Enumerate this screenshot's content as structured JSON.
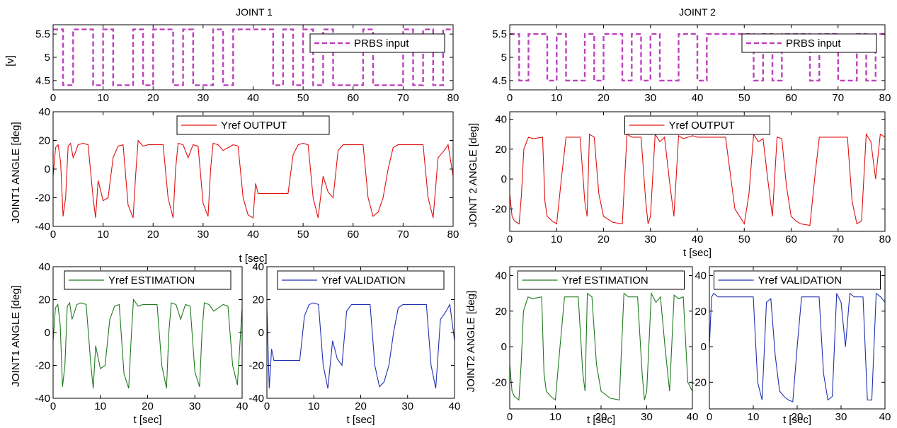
{
  "figure": {
    "title_left": "JOINT 1",
    "title_right": "JOINT  2"
  },
  "chart_data": [
    {
      "id": "j1-input",
      "type": "line",
      "title": "JOINT 1",
      "xlabel": "",
      "ylabel": "[v]",
      "xlim": [
        0,
        80
      ],
      "ylim": [
        4.3,
        5.7
      ],
      "xticks": [
        0,
        10,
        20,
        30,
        40,
        50,
        60,
        70,
        80
      ],
      "yticks": [
        4.5,
        5,
        5.5
      ],
      "legend": "top-right",
      "series": [
        {
          "name": "PRBS  input",
          "color": "#bf40bf",
          "dashed": true,
          "signal": "square",
          "low": 4.4,
          "high": 5.6,
          "transitions": [
            0,
            2,
            4,
            8,
            10,
            12,
            16,
            18,
            20,
            24,
            26,
            28,
            32,
            34,
            36,
            44,
            46,
            48,
            50,
            52,
            54,
            56,
            62,
            64,
            70,
            72,
            74,
            76,
            78
          ]
        }
      ]
    },
    {
      "id": "j1-output",
      "type": "line",
      "xlabel": "t  [sec]",
      "ylabel": "JOINT1  ANGLE  [deg]",
      "xlim": [
        0,
        80
      ],
      "ylim": [
        -40,
        40
      ],
      "xticks": [
        0,
        10,
        20,
        30,
        40,
        50,
        60,
        70,
        80
      ],
      "yticks": [
        -40,
        -20,
        0,
        20,
        40
      ],
      "legend": "top-center",
      "series": [
        {
          "name": "Yref  OUTPUT",
          "color": "#e01010",
          "x": [
            0,
            0.5,
            1,
            1.5,
            2,
            2.5,
            3,
            3.5,
            4,
            4.5,
            5,
            6,
            7,
            8,
            8.5,
            9,
            10,
            11,
            12,
            13,
            14,
            15,
            16,
            16.5,
            17,
            17.5,
            18,
            19,
            20,
            21,
            22,
            23,
            24,
            24.5,
            25,
            26,
            27,
            28,
            29,
            30,
            31,
            31.5,
            32,
            33,
            34,
            35,
            36,
            37,
            38,
            39,
            40,
            40.5,
            41,
            42,
            43,
            44,
            45,
            46,
            47,
            48,
            49,
            50,
            51,
            52,
            53,
            54,
            55,
            56,
            57,
            58,
            59,
            60,
            61,
            62,
            63,
            64,
            65,
            66,
            67,
            68,
            69,
            70,
            71,
            72,
            73,
            74,
            75,
            76,
            77,
            78,
            79,
            80
          ],
          "y": [
            -5,
            15,
            17,
            5,
            -33,
            -20,
            16,
            18,
            8,
            12,
            17,
            18,
            17,
            -20,
            -34,
            -8,
            -22,
            -20,
            8,
            16,
            17,
            -25,
            -34,
            -5,
            20,
            18,
            16,
            17,
            17,
            17,
            17,
            -20,
            -34,
            0,
            18,
            17,
            8,
            17,
            16,
            -24,
            -33,
            0,
            18,
            17,
            13,
            15,
            17,
            16,
            -20,
            -32,
            -34,
            -10,
            -17,
            -17,
            -17,
            -17,
            -17,
            -17,
            -17,
            10,
            17,
            18,
            17,
            -20,
            -34,
            -5,
            -16,
            -20,
            13,
            17,
            17,
            17,
            17,
            17,
            -20,
            -33,
            -30,
            -20,
            0,
            15,
            17,
            17,
            17,
            17,
            17,
            17,
            -20,
            -34,
            8,
            12,
            17,
            -5
          ]
        }
      ]
    },
    {
      "id": "j1-estimation",
      "type": "line",
      "xlabel": "t  [sec]",
      "ylabel": "JOINT1  ANGLE  [deg]",
      "xlim": [
        0,
        40
      ],
      "ylim": [
        -40,
        40
      ],
      "xticks": [
        0,
        10,
        20,
        30,
        40
      ],
      "yticks": [
        -40,
        -20,
        0,
        20,
        40
      ],
      "legend": "top-center",
      "series": [
        {
          "name": "Yref ESTIMATION",
          "color": "#1e7a1e",
          "x": [
            0,
            0.5,
            1,
            1.5,
            2,
            2.5,
            3,
            3.5,
            4,
            4.5,
            5,
            6,
            7,
            8,
            8.5,
            9,
            10,
            11,
            12,
            13,
            14,
            15,
            16,
            16.5,
            17,
            17.5,
            18,
            19,
            20,
            21,
            22,
            23,
            24,
            24.5,
            25,
            26,
            27,
            28,
            29,
            30,
            31,
            31.5,
            32,
            33,
            34,
            35,
            36,
            37,
            38,
            39,
            40
          ],
          "y": [
            -5,
            15,
            17,
            5,
            -33,
            -20,
            16,
            18,
            8,
            12,
            17,
            18,
            17,
            -20,
            -34,
            -8,
            -22,
            -20,
            8,
            16,
            17,
            -25,
            -34,
            -5,
            20,
            18,
            16,
            17,
            17,
            17,
            17,
            -20,
            -34,
            0,
            18,
            17,
            8,
            17,
            16,
            -24,
            -33,
            0,
            18,
            17,
            13,
            15,
            17,
            16,
            -20,
            -32,
            15
          ]
        }
      ]
    },
    {
      "id": "j1-validation",
      "type": "line",
      "xlabel": "t  [sec]",
      "ylabel": "",
      "xlim": [
        0,
        40
      ],
      "ylim": [
        -40,
        40
      ],
      "xticks": [
        0,
        10,
        20,
        30,
        40
      ],
      "yticks": [
        -40,
        -20,
        0,
        20,
        40
      ],
      "legend": "top-center",
      "series": [
        {
          "name": "Yref VALIDATION",
          "color": "#2030b0",
          "x": [
            0,
            0.5,
            1,
            1.5,
            2,
            3,
            4,
            5,
            6,
            7,
            8,
            9,
            10,
            11,
            12,
            13,
            14,
            15,
            16,
            17,
            18,
            19,
            20,
            21,
            22,
            23,
            24,
            25,
            26,
            27,
            28,
            29,
            30,
            31,
            32,
            33,
            34,
            35,
            36,
            37,
            38,
            39,
            40
          ],
          "y": [
            15,
            -34,
            -10,
            -17,
            -17,
            -17,
            -17,
            -17,
            -17,
            -17,
            10,
            17,
            18,
            17,
            -20,
            -34,
            -5,
            -16,
            -20,
            13,
            17,
            17,
            17,
            17,
            17,
            -20,
            -33,
            -30,
            -20,
            0,
            15,
            17,
            17,
            17,
            17,
            17,
            17,
            -20,
            -34,
            8,
            12,
            17,
            -5
          ]
        }
      ]
    },
    {
      "id": "j2-input",
      "type": "line",
      "title": "JOINT  2",
      "xlabel": "",
      "ylabel": "",
      "xlim": [
        0,
        80
      ],
      "ylim": [
        4.3,
        5.7
      ],
      "xticks": [
        0,
        10,
        20,
        30,
        40,
        50,
        60,
        70,
        80
      ],
      "yticks": [
        4.5,
        5,
        5.5
      ],
      "legend": "top-right",
      "series": [
        {
          "name": "PRBS  input",
          "color": "#bf40bf",
          "dashed": true,
          "signal": "square",
          "low": 4.5,
          "high": 5.5,
          "transitions": [
            0,
            2,
            4,
            8,
            10,
            12,
            16,
            18,
            20,
            24,
            26,
            28,
            30,
            32,
            36,
            40,
            42,
            52,
            54,
            56,
            58,
            64,
            66,
            70,
            74,
            76,
            78
          ]
        }
      ]
    },
    {
      "id": "j2-output",
      "type": "line",
      "xlabel": "t  [sec]",
      "ylabel": "JOINT 2  ANGLE  [deg]",
      "xlim": [
        0,
        80
      ],
      "ylim": [
        -35,
        45
      ],
      "xticks": [
        0,
        10,
        20,
        30,
        40,
        50,
        60,
        70,
        80
      ],
      "yticks": [
        -20,
        0,
        20,
        40
      ],
      "legend": "top-center",
      "series": [
        {
          "name": "Yref  OUTPUT",
          "color": "#e01010",
          "x": [
            0,
            0.5,
            1,
            2,
            2.5,
            3,
            4,
            5,
            7,
            7.5,
            8,
            9,
            10,
            11,
            12,
            13,
            15,
            16,
            16.5,
            17,
            18,
            19,
            20,
            22,
            24,
            24.5,
            25,
            26,
            28,
            29,
            29.5,
            30,
            31,
            32,
            33,
            34,
            35,
            36,
            37,
            38,
            39,
            40,
            41,
            42,
            44,
            46,
            48,
            50,
            51,
            52,
            53,
            54,
            55,
            56,
            57,
            58,
            59,
            60,
            61,
            62,
            64,
            65,
            66,
            67,
            68,
            70,
            72,
            73,
            74,
            75,
            76,
            77,
            78,
            79,
            80
          ],
          "y": [
            -10,
            -25,
            -28,
            -30,
            -10,
            20,
            28,
            27,
            28,
            -15,
            -25,
            -28,
            -30,
            0,
            28,
            28,
            28,
            -15,
            -25,
            30,
            28,
            -10,
            -25,
            -29,
            -30,
            0,
            30,
            28,
            28,
            -15,
            -30,
            -25,
            30,
            25,
            28,
            0,
            -25,
            29,
            27,
            28,
            29,
            28,
            28,
            28,
            28,
            28,
            -20,
            -30,
            -10,
            30,
            25,
            27,
            0,
            -25,
            28,
            27,
            -5,
            -25,
            -28,
            -30,
            -31,
            0,
            28,
            28,
            28,
            28,
            28,
            -15,
            -30,
            -28,
            30,
            25,
            0,
            30,
            28
          ]
        }
      ]
    },
    {
      "id": "j2-estimation",
      "type": "line",
      "xlabel": "t  [sec]",
      "ylabel": "JOINT2  ANGLE  [deg]",
      "xlim": [
        0,
        40
      ],
      "ylim": [
        -35,
        45
      ],
      "xticks": [
        0,
        10,
        20,
        30,
        40
      ],
      "yticks": [
        -20,
        0,
        20,
        40
      ],
      "legend": "top-center",
      "series": [
        {
          "name": "Yref ESTIMATION",
          "color": "#1e7a1e",
          "x": [
            0,
            0.5,
            1,
            2,
            2.5,
            3,
            4,
            5,
            7,
            7.5,
            8,
            9,
            10,
            11,
            12,
            13,
            15,
            16,
            16.5,
            17,
            18,
            19,
            20,
            22,
            24,
            24.5,
            25,
            26,
            28,
            29,
            29.5,
            30,
            31,
            32,
            33,
            34,
            35,
            36,
            37,
            38,
            39,
            40
          ],
          "y": [
            -10,
            -25,
            -28,
            -30,
            -10,
            20,
            28,
            27,
            28,
            -15,
            -25,
            -28,
            -30,
            0,
            28,
            28,
            28,
            -15,
            -25,
            30,
            28,
            -10,
            -25,
            -29,
            -30,
            0,
            30,
            28,
            28,
            -15,
            -30,
            -25,
            30,
            25,
            28,
            0,
            -25,
            29,
            27,
            28,
            -20,
            -25
          ]
        }
      ]
    },
    {
      "id": "j2-validation",
      "type": "line",
      "xlabel": "t  [sec]",
      "ylabel": "",
      "xlim": [
        0,
        40
      ],
      "ylim": [
        -35,
        45
      ],
      "xticks": [
        0,
        10,
        20,
        30,
        40
      ],
      "yticks": [
        -20,
        0,
        20,
        40
      ],
      "legend": "top-center",
      "series": [
        {
          "name": "Yref VALIDATION",
          "color": "#2030b0",
          "x": [
            0,
            0.5,
            1,
            2,
            4,
            6,
            8,
            10,
            11,
            12,
            13,
            14,
            15,
            16,
            17,
            18,
            19,
            20,
            21,
            22,
            23,
            24,
            25,
            26,
            27,
            28,
            29,
            30,
            31,
            32,
            33,
            34,
            35,
            36,
            37,
            38,
            39,
            40
          ],
          "y": [
            0,
            28,
            30,
            28,
            28,
            28,
            28,
            28,
            -20,
            -30,
            25,
            27,
            -5,
            -25,
            -28,
            -30,
            -31,
            0,
            28,
            28,
            28,
            28,
            28,
            -15,
            -30,
            -28,
            30,
            25,
            0,
            30,
            28,
            28,
            28,
            -30,
            -30,
            30,
            28,
            25
          ]
        }
      ]
    }
  ]
}
